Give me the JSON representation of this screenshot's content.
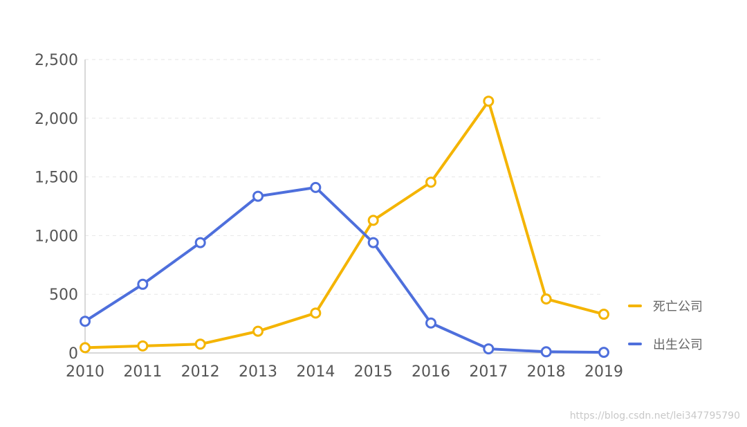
{
  "chart_data": {
    "type": "line",
    "categories": [
      "2010",
      "2011",
      "2012",
      "2013",
      "2014",
      "2015",
      "2016",
      "2017",
      "2018",
      "2019"
    ],
    "ylim": [
      0,
      2500
    ],
    "yticks": [
      0,
      500,
      1000,
      1500,
      2000,
      2500
    ],
    "ytick_labels": [
      "0",
      "500",
      "1,000",
      "1,500",
      "2,000",
      "2,500"
    ],
    "grid": true,
    "legend_position": "right",
    "series": [
      {
        "name": "死亡公司",
        "color": "#f4b400",
        "values": [
          45,
          60,
          75,
          185,
          340,
          1130,
          1455,
          2145,
          460,
          330
        ]
      },
      {
        "name": "出生公司",
        "color": "#4e6fdc",
        "values": [
          270,
          585,
          940,
          1335,
          1410,
          940,
          255,
          35,
          10,
          5
        ]
      }
    ]
  },
  "watermark": "https://blog.csdn.net/lei347795790"
}
